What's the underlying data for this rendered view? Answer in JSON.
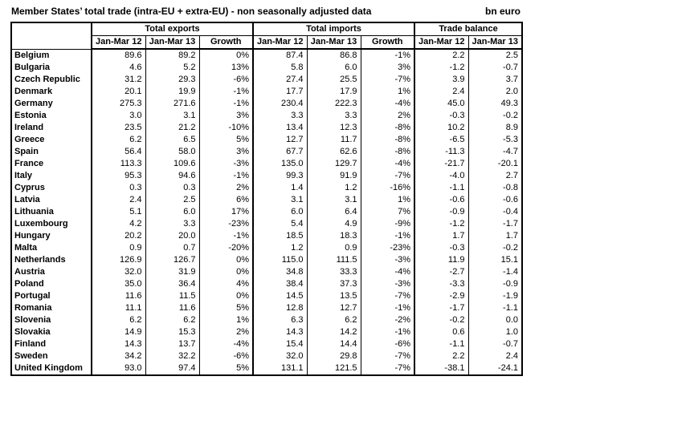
{
  "title": "Member States’ total trade (intra-EU + extra-EU) - non seasonally adjusted data",
  "unit": "bn euro",
  "table": {
    "groups": [
      {
        "label": "Total exports",
        "span": 3
      },
      {
        "label": "Total imports",
        "span": 3
      },
      {
        "label": "Trade balance",
        "span": 2
      }
    ],
    "sub_headers": [
      "Jan-Mar 12",
      "Jan-Mar 13",
      "Growth",
      "Jan-Mar 12",
      "Jan-Mar 13",
      "Growth",
      "Jan-Mar 12",
      "Jan-Mar 13"
    ],
    "rows": [
      {
        "country": "Belgium",
        "values": [
          "89.6",
          "89.2",
          "0%",
          "87.4",
          "86.8",
          "-1%",
          "2.2",
          "2.5"
        ]
      },
      {
        "country": "Bulgaria",
        "values": [
          "4.6",
          "5.2",
          "13%",
          "5.8",
          "6.0",
          "3%",
          "-1.2",
          "-0.7"
        ]
      },
      {
        "country": "Czech Republic",
        "values": [
          "31.2",
          "29.3",
          "-6%",
          "27.4",
          "25.5",
          "-7%",
          "3.9",
          "3.7"
        ]
      },
      {
        "country": "Denmark",
        "values": [
          "20.1",
          "19.9",
          "-1%",
          "17.7",
          "17.9",
          "1%",
          "2.4",
          "2.0"
        ]
      },
      {
        "country": "Germany",
        "values": [
          "275.3",
          "271.6",
          "-1%",
          "230.4",
          "222.3",
          "-4%",
          "45.0",
          "49.3"
        ]
      },
      {
        "country": "Estonia",
        "values": [
          "3.0",
          "3.1",
          "3%",
          "3.3",
          "3.3",
          "2%",
          "-0.3",
          "-0.2"
        ]
      },
      {
        "country": "Ireland",
        "values": [
          "23.5",
          "21.2",
          "-10%",
          "13.4",
          "12.3",
          "-8%",
          "10.2",
          "8.9"
        ]
      },
      {
        "country": "Greece",
        "values": [
          "6.2",
          "6.5",
          "5%",
          "12.7",
          "11.7",
          "-8%",
          "-6.5",
          "-5.3"
        ]
      },
      {
        "country": "Spain",
        "values": [
          "56.4",
          "58.0",
          "3%",
          "67.7",
          "62.6",
          "-8%",
          "-11.3",
          "-4.7"
        ]
      },
      {
        "country": "France",
        "values": [
          "113.3",
          "109.6",
          "-3%",
          "135.0",
          "129.7",
          "-4%",
          "-21.7",
          "-20.1"
        ]
      },
      {
        "country": "Italy",
        "values": [
          "95.3",
          "94.6",
          "-1%",
          "99.3",
          "91.9",
          "-7%",
          "-4.0",
          "2.7"
        ]
      },
      {
        "country": "Cyprus",
        "values": [
          "0.3",
          "0.3",
          "2%",
          "1.4",
          "1.2",
          "-16%",
          "-1.1",
          "-0.8"
        ]
      },
      {
        "country": "Latvia",
        "values": [
          "2.4",
          "2.5",
          "6%",
          "3.1",
          "3.1",
          "1%",
          "-0.6",
          "-0.6"
        ]
      },
      {
        "country": "Lithuania",
        "values": [
          "5.1",
          "6.0",
          "17%",
          "6.0",
          "6.4",
          "7%",
          "-0.9",
          "-0.4"
        ]
      },
      {
        "country": "Luxembourg",
        "values": [
          "4.2",
          "3.3",
          "-23%",
          "5.4",
          "4.9",
          "-9%",
          "-1.2",
          "-1.7"
        ]
      },
      {
        "country": "Hungary",
        "values": [
          "20.2",
          "20.0",
          "-1%",
          "18.5",
          "18.3",
          "-1%",
          "1.7",
          "1.7"
        ]
      },
      {
        "country": "Malta",
        "values": [
          "0.9",
          "0.7",
          "-20%",
          "1.2",
          "0.9",
          "-23%",
          "-0.3",
          "-0.2"
        ]
      },
      {
        "country": "Netherlands",
        "values": [
          "126.9",
          "126.7",
          "0%",
          "115.0",
          "111.5",
          "-3%",
          "11.9",
          "15.1"
        ]
      },
      {
        "country": "Austria",
        "values": [
          "32.0",
          "31.9",
          "0%",
          "34.8",
          "33.3",
          "-4%",
          "-2.7",
          "-1.4"
        ]
      },
      {
        "country": "Poland",
        "values": [
          "35.0",
          "36.4",
          "4%",
          "38.4",
          "37.3",
          "-3%",
          "-3.3",
          "-0.9"
        ]
      },
      {
        "country": "Portugal",
        "values": [
          "11.6",
          "11.5",
          "0%",
          "14.5",
          "13.5",
          "-7%",
          "-2.9",
          "-1.9"
        ]
      },
      {
        "country": "Romania",
        "values": [
          "11.1",
          "11.6",
          "5%",
          "12.8",
          "12.7",
          "-1%",
          "-1.7",
          "-1.1"
        ]
      },
      {
        "country": "Slovenia",
        "values": [
          "6.2",
          "6.2",
          "1%",
          "6.3",
          "6.2",
          "-2%",
          "-0.2",
          "0.0"
        ]
      },
      {
        "country": "Slovakia",
        "values": [
          "14.9",
          "15.3",
          "2%",
          "14.3",
          "14.2",
          "-1%",
          "0.6",
          "1.0"
        ]
      },
      {
        "country": "Finland",
        "values": [
          "14.3",
          "13.7",
          "-4%",
          "15.4",
          "14.4",
          "-6%",
          "-1.1",
          "-0.7"
        ]
      },
      {
        "country": "Sweden",
        "values": [
          "34.2",
          "32.2",
          "-6%",
          "32.0",
          "29.8",
          "-7%",
          "2.2",
          "2.4"
        ]
      },
      {
        "country": "United Kingdom",
        "values": [
          "93.0",
          "97.4",
          "5%",
          "131.1",
          "121.5",
          "-7%",
          "-38.1",
          "-24.1"
        ]
      }
    ]
  }
}
